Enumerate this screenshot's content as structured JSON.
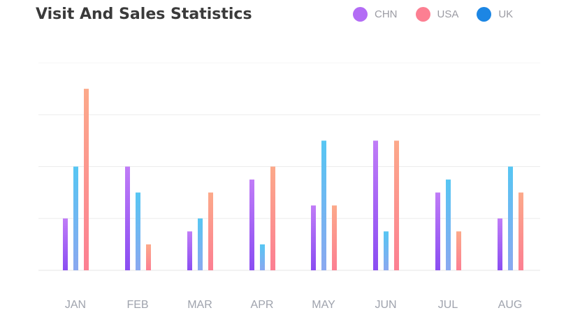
{
  "title": "Visit And Sales Statistics",
  "legend": {
    "chn": {
      "label": "CHN",
      "color": "#b36cf5"
    },
    "usa": {
      "label": "USA",
      "color": "#fc7f92"
    },
    "uk": {
      "label": "UK",
      "color": "#1c86e4"
    }
  },
  "chart_data": {
    "type": "bar",
    "title": "Visit And Sales Statistics",
    "categories": [
      "JAN",
      "FEB",
      "MAR",
      "APR",
      "MAY",
      "JUN",
      "JUL",
      "AUG"
    ],
    "series": [
      {
        "name": "CHN",
        "values": [
          20,
          40,
          15,
          35,
          25,
          50,
          30,
          20
        ],
        "gradient": [
          "#c07cf7",
          "#8a4df2"
        ]
      },
      {
        "name": "UK",
        "values": [
          40,
          30,
          20,
          10,
          50,
          15,
          35,
          40
        ],
        "gradient": [
          "#56c6f3",
          "#8aa8f0"
        ]
      },
      {
        "name": "USA",
        "values": [
          70,
          10,
          30,
          40,
          25,
          50,
          15,
          30
        ],
        "gradient": [
          "#fca98a",
          "#fc7f92"
        ]
      }
    ],
    "ylim": [
      0,
      80
    ],
    "grid": true,
    "legend_position": "top-right",
    "xlabel": "",
    "ylabel": ""
  }
}
